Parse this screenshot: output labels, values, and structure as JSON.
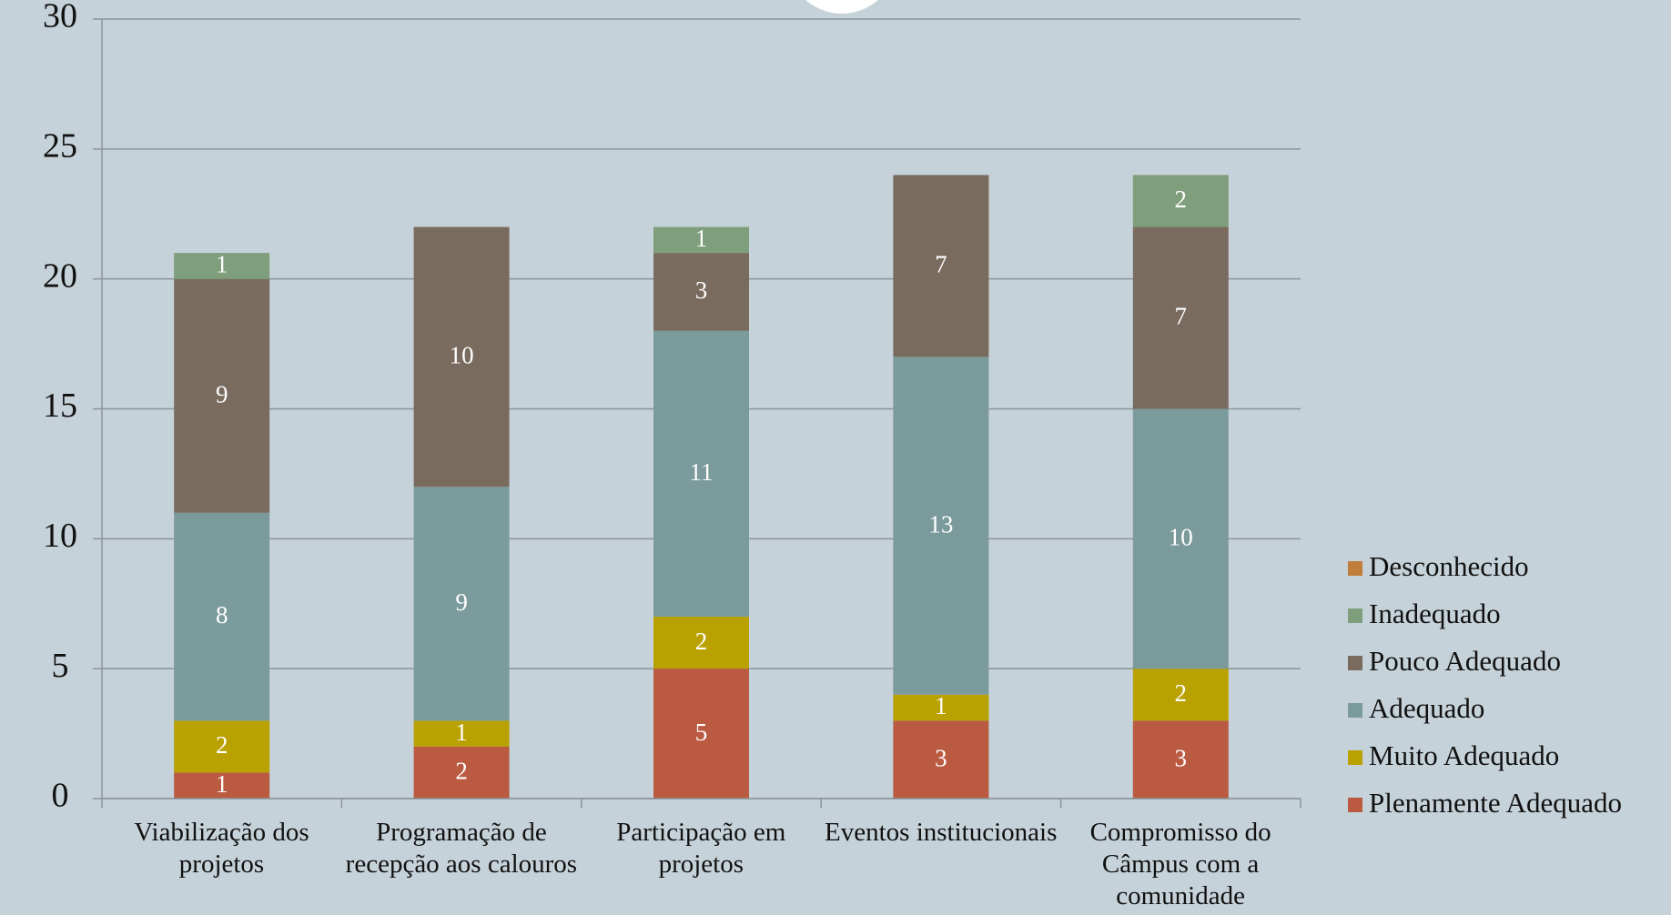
{
  "chart_data": {
    "type": "stacked_bar",
    "categories": [
      "Viabilização dos projetos",
      "Programação de recepção aos calouros",
      "Participação em projetos",
      "Eventos institucionais",
      "Compromisso do Câmpus com a comunidade"
    ],
    "series": [
      {
        "name": "Plenamente Adequado",
        "color": "#b95a41",
        "values": [
          1,
          2,
          5,
          3,
          3
        ]
      },
      {
        "name": "Muito Adequado",
        "color": "#b8a100",
        "values": [
          2,
          1,
          2,
          1,
          2
        ]
      },
      {
        "name": "Adequado",
        "color": "#7b9a9b",
        "values": [
          8,
          9,
          11,
          13,
          10
        ]
      },
      {
        "name": "Pouco Adequado",
        "color": "#7a6b5f",
        "values": [
          9,
          10,
          3,
          7,
          7
        ]
      },
      {
        "name": "Inadequado",
        "color": "#7f9e7c",
        "values": [
          1,
          null,
          1,
          null,
          2
        ]
      },
      {
        "name": "Desconhecido",
        "color": "#c17d3c",
        "values": [
          null,
          null,
          null,
          null,
          null
        ]
      }
    ],
    "ylim": [
      0,
      30
    ],
    "yticks": [
      0,
      5,
      10,
      15,
      20,
      25,
      30
    ],
    "grid": true,
    "legend": "right"
  }
}
